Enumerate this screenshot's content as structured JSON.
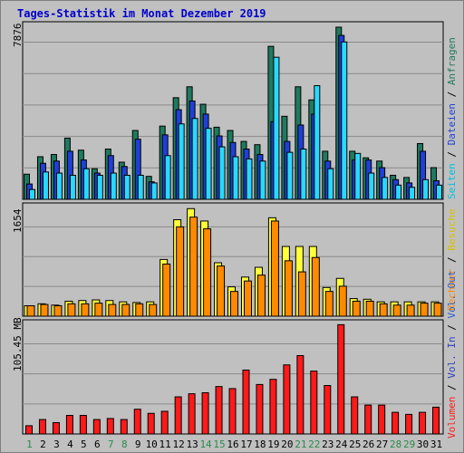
{
  "title": "Tages-Statistik im Monat Dezember 2019",
  "colors": {
    "background": "#c0c0c0",
    "plot_background": "#c0c0c0",
    "anfragen": "#1f7a5f",
    "dateien": "#1f3fd6",
    "seiten": "#2ad8ff",
    "besuche": "#ffff3a",
    "rechner": "#ff8a00",
    "vol_out": "#2a5fd6",
    "vol_in": "#2a3fc0",
    "volumen": "#ff1a1a",
    "weekday_label": "#000000",
    "weekend_label": "#2a8a4a"
  },
  "legends": {
    "top": [
      {
        "text": "Seiten",
        "color": "#00c0e0"
      },
      {
        "text": "Dateien",
        "color": "#1f3fd6"
      },
      {
        "text": "Anfragen",
        "color": "#1f7a5f"
      }
    ],
    "middle": [
      {
        "text": "Rechner",
        "color": "#ff8a00"
      },
      {
        "text": "Besuche",
        "color": "#d8c000"
      }
    ],
    "bottom": [
      {
        "text": "Volumen",
        "color": "#ff1a1a"
      },
      {
        "text": "Vol. In",
        "color": "#2a3fc0"
      },
      {
        "text": "Vol. Out",
        "color": "#2a5fd6"
      }
    ]
  },
  "chart_data": [
    {
      "type": "bar",
      "ymax_label": "7876",
      "ylim": [
        0,
        7876
      ],
      "categories": [
        "1",
        "2",
        "3",
        "4",
        "5",
        "6",
        "7",
        "8",
        "9",
        "10",
        "11",
        "12",
        "13",
        "14",
        "15",
        "16",
        "17",
        "18",
        "19",
        "20",
        "21",
        "22",
        "23",
        "24",
        "25",
        "26",
        "27",
        "28",
        "29",
        "30",
        "31"
      ],
      "weekend_days": [
        "1",
        "7",
        "8",
        "14",
        "15",
        "21",
        "22",
        "28",
        "29"
      ],
      "grid": true,
      "series": [
        {
          "name": "Anfragen",
          "values": [
            1150,
            1950,
            2050,
            2800,
            2250,
            1400,
            2300,
            1700,
            3150,
            1050,
            3350,
            4650,
            5150,
            4350,
            3300,
            3150,
            2650,
            2500,
            7000,
            3800,
            5150,
            4550,
            2200,
            7876,
            2200,
            1900,
            1750,
            1100,
            1000,
            2550,
            1450
          ]
        },
        {
          "name": "Dateien",
          "values": [
            700,
            1650,
            1750,
            2200,
            1800,
            1200,
            2000,
            1500,
            2750,
            800,
            2950,
            4100,
            4500,
            3900,
            2900,
            2600,
            2300,
            2050,
            3550,
            2650,
            3400,
            3900,
            1750,
            7500,
            1800,
            1800,
            1450,
            900,
            750,
            2200,
            850
          ]
        },
        {
          "name": "Seiten",
          "values": [
            450,
            1250,
            1200,
            1100,
            1400,
            1100,
            1200,
            1100,
            1100,
            750,
            2000,
            3450,
            3700,
            3250,
            2400,
            1950,
            1850,
            1750,
            6500,
            2150,
            2300,
            5200,
            1400,
            7200,
            2100,
            1200,
            1000,
            650,
            550,
            900,
            650
          ]
        }
      ]
    },
    {
      "type": "bar",
      "ymax_label": "1654",
      "ylim": [
        0,
        1654
      ],
      "series": [
        {
          "name": "Besuche",
          "values": [
            160,
            190,
            170,
            230,
            240,
            250,
            240,
            220,
            210,
            220,
            870,
            1480,
            1650,
            1460,
            820,
            450,
            600,
            750,
            1510,
            1070,
            1070,
            1070,
            440,
            580,
            270,
            260,
            220,
            220,
            220,
            220,
            220
          ]
        },
        {
          "name": "Rechner",
          "values": [
            160,
            180,
            160,
            190,
            190,
            200,
            180,
            180,
            190,
            180,
            800,
            1370,
            1520,
            1340,
            770,
            380,
            540,
            630,
            1460,
            850,
            680,
            900,
            380,
            460,
            230,
            230,
            190,
            170,
            170,
            200,
            200
          ]
        }
      ]
    },
    {
      "type": "bar",
      "ymax_label": "105.45 MB",
      "ylim": [
        0,
        105.45
      ],
      "series": [
        {
          "name": "Volumen",
          "values": [
            8,
            14,
            11,
            18,
            18,
            14,
            15,
            14,
            24,
            20,
            22,
            36,
            39,
            40,
            46,
            44,
            62,
            48,
            53,
            67,
            76,
            61,
            47,
            106,
            36,
            28,
            28,
            21,
            19,
            21,
            26
          ]
        },
        {
          "name": "Vol. In",
          "values": []
        },
        {
          "name": "Vol. Out",
          "values": []
        }
      ]
    }
  ]
}
